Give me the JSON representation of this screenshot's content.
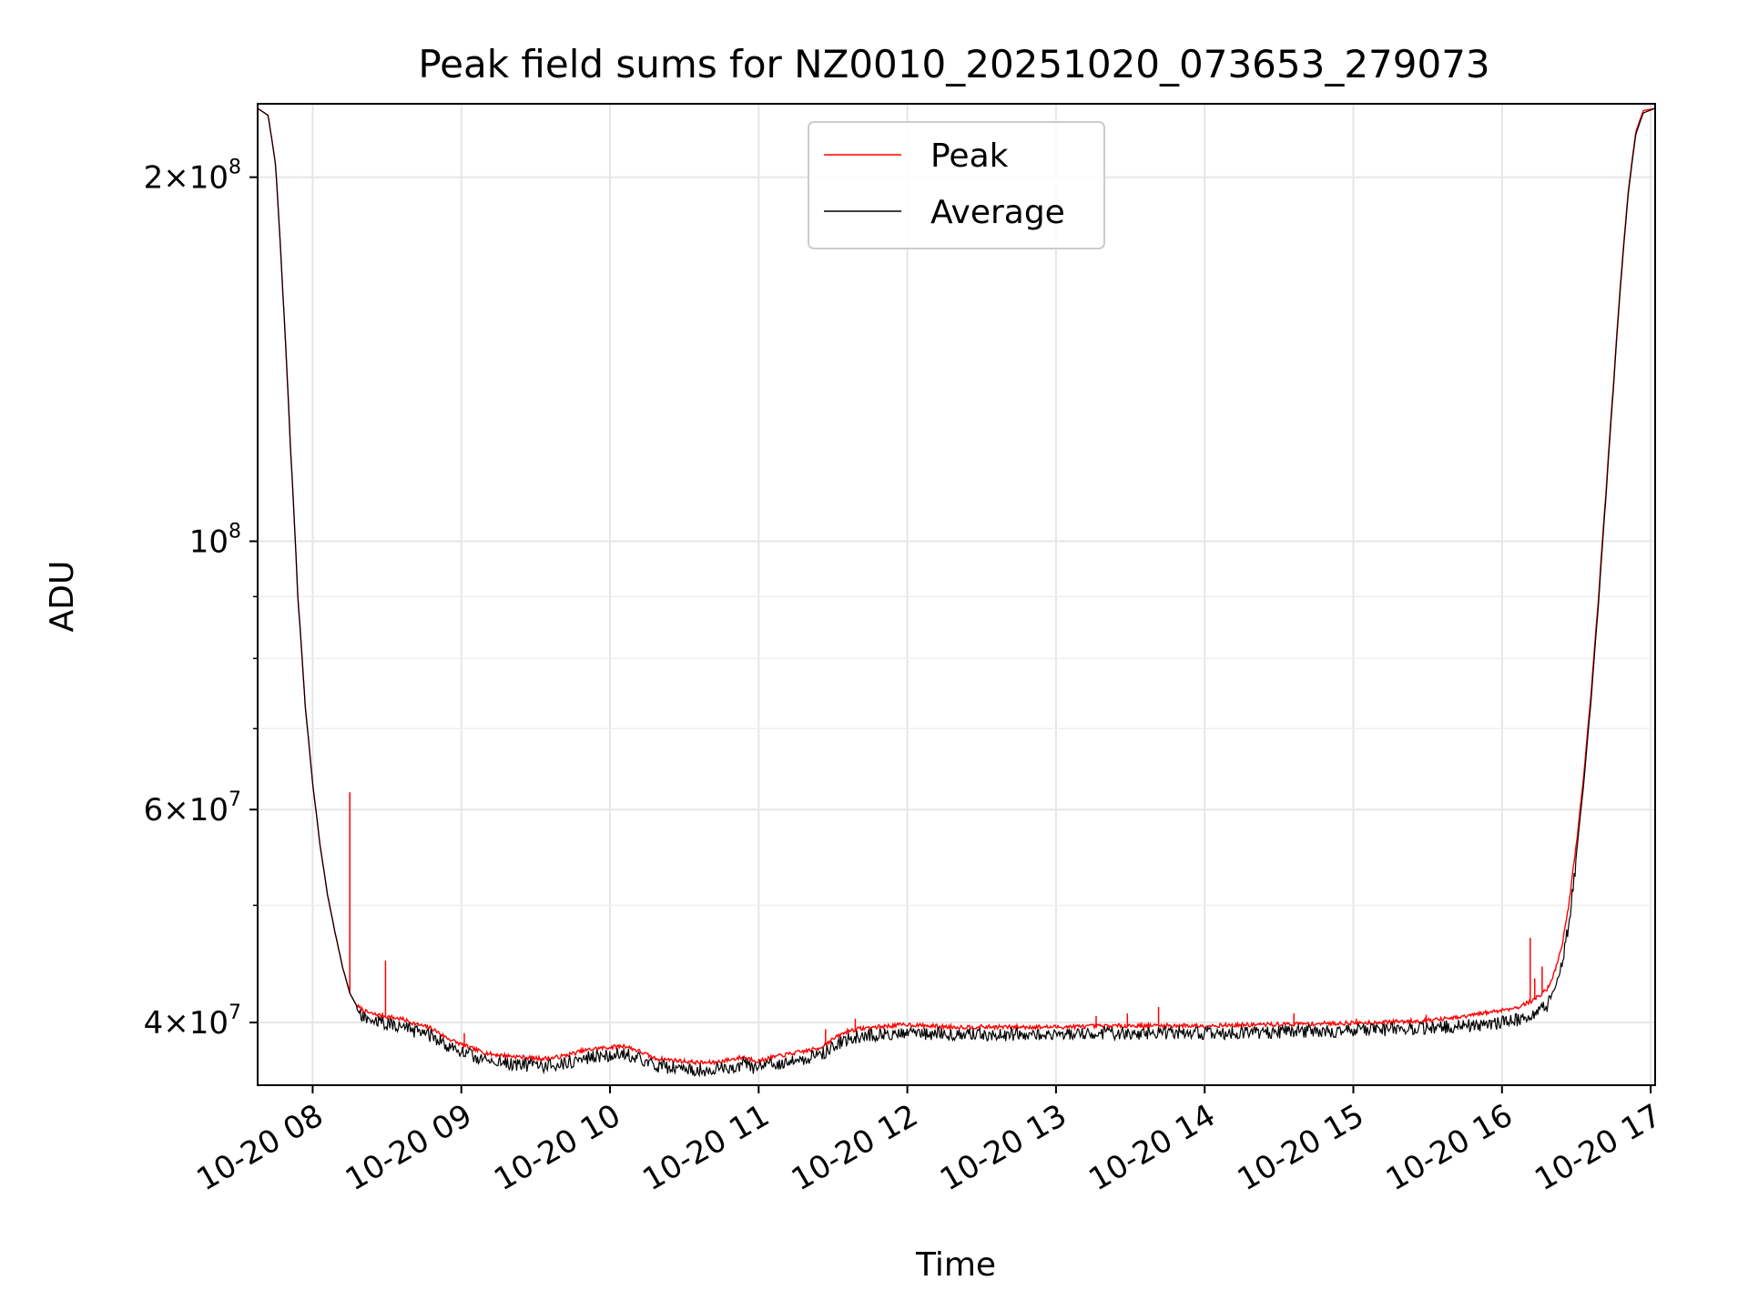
{
  "chart_data": {
    "type": "line",
    "title": "Peak field sums for NZ0010_20251020_073653_279073",
    "xlabel": "Time",
    "ylabel": "ADU",
    "yscale": "log",
    "xlim": [
      7.63,
      17.03
    ],
    "ylim": [
      35500000,
      230000000
    ],
    "grid": true,
    "legend_position": "top-center",
    "x_ticks": [
      {
        "value": 8,
        "label": "10-20 08"
      },
      {
        "value": 9,
        "label": "10-20 09"
      },
      {
        "value": 10,
        "label": "10-20 10"
      },
      {
        "value": 11,
        "label": "10-20 11"
      },
      {
        "value": 12,
        "label": "10-20 12"
      },
      {
        "value": 13,
        "label": "10-20 13"
      },
      {
        "value": 14,
        "label": "10-20 14"
      },
      {
        "value": 15,
        "label": "10-20 15"
      },
      {
        "value": 16,
        "label": "10-20 16"
      },
      {
        "value": 17,
        "label": "10-20 17"
      }
    ],
    "y_major_ticks": [
      {
        "value": 40000000,
        "mant": "4",
        "exp": "7"
      },
      {
        "value": 60000000,
        "mant": "6",
        "exp": "7"
      },
      {
        "value": 100000000,
        "mant": "",
        "exp": "8"
      },
      {
        "value": 200000000,
        "mant": "2",
        "exp": "8"
      }
    ],
    "y_minor_ticks": [
      50000000,
      70000000,
      80000000,
      90000000
    ],
    "series": [
      {
        "name": "Peak",
        "color": "#ff0000",
        "x": [
          7.63,
          7.7,
          7.75,
          7.8,
          7.85,
          7.9,
          7.95,
          8.0,
          8.05,
          8.1,
          8.15,
          8.2,
          8.25,
          8.3,
          8.35,
          8.4,
          8.5,
          8.6,
          8.7,
          8.8,
          8.9,
          9.0,
          9.1,
          9.2,
          9.3,
          9.4,
          9.5,
          9.6,
          9.7,
          9.8,
          9.9,
          10.0,
          10.1,
          10.2,
          10.3,
          10.4,
          10.5,
          10.6,
          10.7,
          10.8,
          10.9,
          11.0,
          11.1,
          11.2,
          11.3,
          11.4,
          11.5,
          11.6,
          11.7,
          11.8,
          11.9,
          12.0,
          12.1,
          12.3,
          12.5,
          13.0,
          13.5,
          14.0,
          14.5,
          15.0,
          15.3,
          15.5,
          15.7,
          15.8,
          15.9,
          16.0,
          16.1,
          16.2,
          16.3,
          16.35,
          16.4,
          16.45,
          16.5,
          16.55,
          16.6,
          16.65,
          16.7,
          16.75,
          16.8,
          16.85,
          16.9,
          16.95,
          17.03
        ],
        "y": [
          228000000,
          225000000,
          205000000,
          160000000,
          120000000,
          90000000,
          73000000,
          63000000,
          56000000,
          51000000,
          47500000,
          44500000,
          42300000,
          41200000,
          40800000,
          40600000,
          40400000,
          40200000,
          39800000,
          39500000,
          38800000,
          38300000,
          37900000,
          37600000,
          37500000,
          37400000,
          37300000,
          37300000,
          37500000,
          37800000,
          38000000,
          38100000,
          38200000,
          37800000,
          37300000,
          37200000,
          37100000,
          37000000,
          37000000,
          37200000,
          37400000,
          37100000,
          37400000,
          37600000,
          37800000,
          38000000,
          38700000,
          39300000,
          39500000,
          39600000,
          39700000,
          39800000,
          39700000,
          39600000,
          39600000,
          39600000,
          39700000,
          39700000,
          39800000,
          39900000,
          40000000,
          40100000,
          40300000,
          40500000,
          40700000,
          40900000,
          41100000,
          41600000,
          42500000,
          43800000,
          46000000,
          50000000,
          56000000,
          64000000,
          75000000,
          90000000,
          110000000,
          135000000,
          165000000,
          195000000,
          218000000,
          227000000,
          228000000
        ]
      },
      {
        "name": "Average",
        "color": "#000000",
        "x": [
          7.63,
          7.7,
          7.75,
          7.8,
          7.85,
          7.9,
          7.95,
          8.0,
          8.05,
          8.1,
          8.15,
          8.2,
          8.25,
          8.3,
          8.35,
          8.4,
          8.5,
          8.6,
          8.7,
          8.8,
          8.9,
          9.0,
          9.1,
          9.2,
          9.3,
          9.4,
          9.5,
          9.6,
          9.7,
          9.8,
          9.9,
          10.0,
          10.1,
          10.2,
          10.3,
          10.4,
          10.5,
          10.6,
          10.7,
          10.8,
          10.9,
          11.0,
          11.1,
          11.2,
          11.3,
          11.4,
          11.5,
          11.6,
          11.7,
          11.8,
          11.9,
          12.0,
          12.1,
          12.3,
          12.5,
          13.0,
          13.5,
          14.0,
          14.5,
          15.0,
          15.3,
          15.5,
          15.7,
          15.8,
          15.9,
          16.0,
          16.1,
          16.2,
          16.3,
          16.35,
          16.4,
          16.45,
          16.5,
          16.55,
          16.6,
          16.65,
          16.7,
          16.75,
          16.8,
          16.85,
          16.9,
          16.95,
          17.03
        ],
        "y": [
          228000000,
          225000000,
          205000000,
          160000000,
          120000000,
          90000000,
          73000000,
          63000000,
          56000000,
          51000000,
          47500000,
          44500000,
          42300000,
          41200000,
          40800000,
          40600000,
          40400000,
          40200000,
          39800000,
          39500000,
          38800000,
          38300000,
          37900000,
          37600000,
          37500000,
          37400000,
          37300000,
          37300000,
          37500000,
          37800000,
          38000000,
          38100000,
          38200000,
          37800000,
          37300000,
          37200000,
          37100000,
          37000000,
          37000000,
          37200000,
          37400000,
          37100000,
          37400000,
          37600000,
          37800000,
          38000000,
          38700000,
          39300000,
          39500000,
          39600000,
          39700000,
          39800000,
          39700000,
          39600000,
          39600000,
          39600000,
          39700000,
          39700000,
          39800000,
          39900000,
          40000000,
          40100000,
          40200000,
          40300000,
          40400000,
          40500000,
          40700000,
          41000000,
          41800000,
          43000000,
          45000000,
          49000000,
          55000000,
          63000000,
          74000000,
          89000000,
          109000000,
          134000000,
          164000000,
          194000000,
          217000000,
          226000000,
          228000000
        ]
      }
    ],
    "spikes": [
      {
        "x": 8.25,
        "y": 62000000
      },
      {
        "x": 8.49,
        "y": 45000000
      },
      {
        "x": 9.02,
        "y": 39200000
      },
      {
        "x": 11.45,
        "y": 39500000
      },
      {
        "x": 11.65,
        "y": 40300000
      },
      {
        "x": 13.27,
        "y": 40500000
      },
      {
        "x": 13.48,
        "y": 40700000
      },
      {
        "x": 13.69,
        "y": 41200000
      },
      {
        "x": 13.83,
        "y": 39900000
      },
      {
        "x": 14.6,
        "y": 40700000
      },
      {
        "x": 15.02,
        "y": 40300000
      },
      {
        "x": 15.1,
        "y": 40100000
      },
      {
        "x": 15.49,
        "y": 40600000
      },
      {
        "x": 16.19,
        "y": 47000000
      },
      {
        "x": 16.22,
        "y": 43500000
      },
      {
        "x": 16.27,
        "y": 44500000
      }
    ]
  }
}
